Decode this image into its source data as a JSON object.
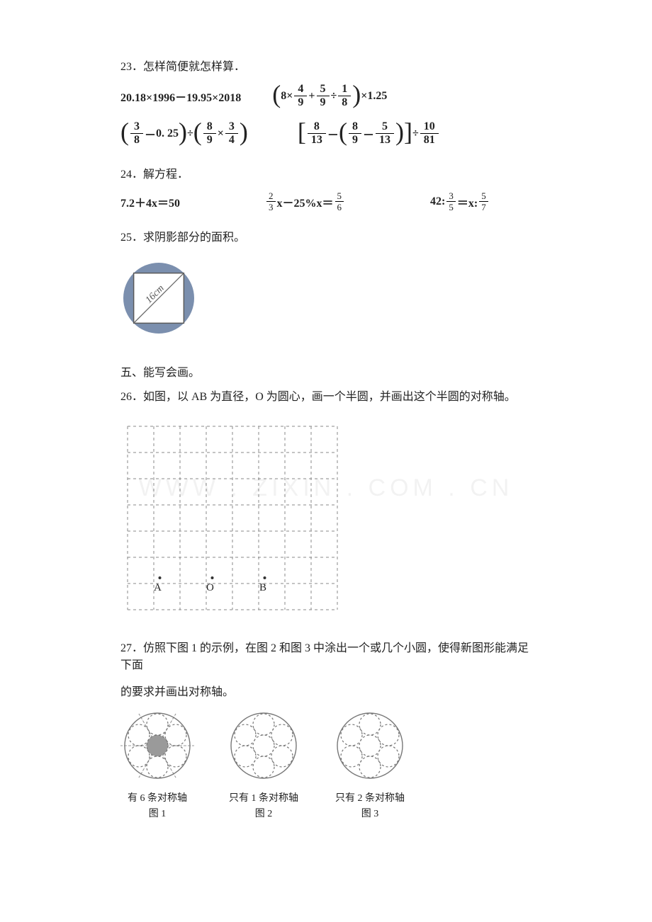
{
  "q23": {
    "label": "23．怎样简便就怎样算．"
  },
  "expr": {
    "a": "20.18×1996－19.95×2018",
    "b_tail": "×1.25",
    "c_minus": "0. 25",
    "d_div_tail_num": "10",
    "d_div_tail_den": "81"
  },
  "q24": {
    "label": "24．解方程．"
  },
  "eq": {
    "e1": "7.2＋4x＝50",
    "e2_left_num": "2",
    "e2_left_den": "3",
    "e2_mid": "x－25%x＝",
    "e2_right_num": "5",
    "e2_right_den": "6",
    "e3_pre": "42:",
    "e3_a_num": "3",
    "e3_a_den": "5",
    "e3_mid": "＝x:",
    "e3_b_num": "5",
    "e3_b_den": "7"
  },
  "q25": {
    "label": "25．求阴影部分的面积。",
    "diag_label": "16cm"
  },
  "sec5": "五、能写会画。",
  "q26": {
    "label": "26．如图，以 AB 为直径，O 为圆心，画一个半圆，并画出这个半圆的对称轴。",
    "ptA": "A",
    "ptO": "O",
    "ptB": "B",
    "grid": {
      "cols": 8,
      "rows": 7,
      "cell": 37,
      "stroke": "#8a8a8a"
    }
  },
  "q27": {
    "label_1": "27．仿照下图 1 的示例，在图 2 和图 3 中涂出一个或几个小圆，使得新图形能满足下面",
    "label_2": "的要求并画出对称轴。"
  },
  "figs": {
    "f1_cap1": "有 6 条对称轴",
    "f1_cap2": "图 1",
    "f2_cap1": "只有 1 条对称轴",
    "f2_cap2": "图 2",
    "f3_cap1": "只有 2 条对称轴",
    "f3_cap2": "图 3",
    "outer_r": 46,
    "inner_r": 15,
    "stroke": "#777",
    "dash_stroke": "#999",
    "fill_shade": "#9a9a9a"
  },
  "colors": {
    "text": "#222222",
    "circle_fill": "#7b8fae",
    "square_fill": "#ffffff",
    "square_stroke": "#5a5a5a"
  },
  "watermark": "WWW . ZIXIN . COM . CN"
}
